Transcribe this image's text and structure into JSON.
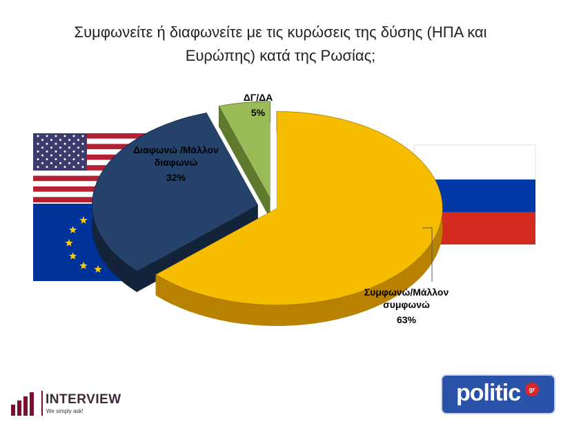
{
  "title": {
    "line1": "Συμφωνείτε ή διαφωνείτε με τις κυρώσεις της δύσης  (ΗΠΑ και",
    "line2": "Ευρώπης) κατά της Ρωσίας;"
  },
  "chart_data": {
    "type": "pie",
    "title": "Συμφωνείτε ή διαφωνείτε με τις κυρώσεις της δύσης  (ΗΠΑ και Ευρώπης) κατά της Ρωσίας;",
    "slices": [
      {
        "label_lines": [
          "Συμφωνώ/Μάλλον",
          "συμφωνώ"
        ],
        "value": 63,
        "value_label": "63%",
        "color": "#f6bc00",
        "side_color": "#b88200"
      },
      {
        "label_lines": [
          "Διαφωνώ /Μάλλον",
          "διαφωνώ"
        ],
        "value": 32,
        "value_label": "32%",
        "color": "#25426a",
        "side_color": "#13233a"
      },
      {
        "label_lines": [
          "ΔΓ/ΔΑ"
        ],
        "value": 5,
        "value_label": "5%",
        "color": "#9bbb58",
        "side_color": "#5f7a2c"
      }
    ],
    "exploded": true,
    "legend": "none"
  },
  "background_images": [
    {
      "name": "usa-flag",
      "colors": [
        "#b22234",
        "#ffffff",
        "#3c3b6e"
      ]
    },
    {
      "name": "eu-flag",
      "colors": [
        "#003399",
        "#ffcc00"
      ]
    },
    {
      "name": "russia-flag",
      "colors": [
        "#ffffff",
        "#0039a6",
        "#d52b1e"
      ]
    }
  ],
  "logos": {
    "interview": {
      "name": "INTERVIEW",
      "tagline": "We simply ask!",
      "color": "#7a1030"
    },
    "politic": {
      "name": "politic",
      "badge": "gr",
      "color": "#2a52a8"
    }
  }
}
